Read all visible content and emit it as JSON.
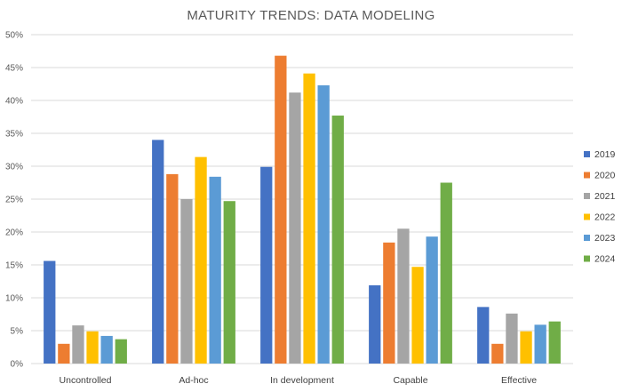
{
  "chart_data": {
    "type": "bar",
    "title": "MATURITY TRENDS: DATA MODELING",
    "xlabel": "",
    "ylabel": "",
    "ylim": [
      0,
      50
    ],
    "yticks": [
      0,
      5,
      10,
      15,
      20,
      25,
      30,
      35,
      40,
      45,
      50
    ],
    "ytick_format": "percent",
    "grid": true,
    "legend_position": "right",
    "categories": [
      "Uncontrolled",
      "Ad-hoc",
      "In development",
      "Capable",
      "Effective"
    ],
    "series": [
      {
        "name": "2019",
        "color": "#4472C4",
        "values": [
          15.6,
          34.0,
          29.9,
          11.9,
          8.6
        ]
      },
      {
        "name": "2020",
        "color": "#ED7D31",
        "values": [
          3.0,
          28.8,
          46.8,
          18.4,
          3.0
        ]
      },
      {
        "name": "2021",
        "color": "#A5A5A5",
        "values": [
          5.8,
          25.0,
          41.2,
          20.5,
          7.6
        ]
      },
      {
        "name": "2022",
        "color": "#FFC000",
        "values": [
          4.9,
          31.4,
          44.1,
          14.7,
          4.9
        ]
      },
      {
        "name": "2023",
        "color": "#5B9BD5",
        "values": [
          4.2,
          28.4,
          42.3,
          19.3,
          5.9
        ]
      },
      {
        "name": "2024",
        "color": "#70AD47",
        "values": [
          3.7,
          24.7,
          37.7,
          27.5,
          6.4
        ]
      }
    ]
  }
}
